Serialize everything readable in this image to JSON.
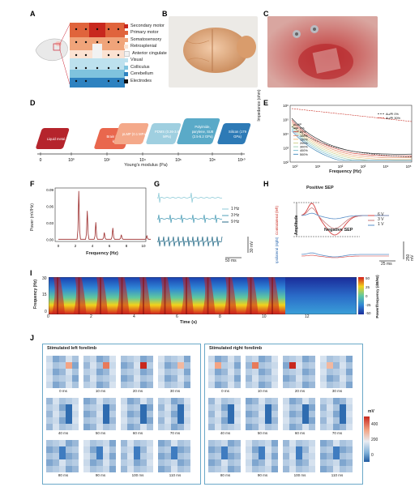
{
  "labels": {
    "A": "A",
    "B": "B",
    "C": "C",
    "D": "D",
    "E": "E",
    "F": "F",
    "G": "G",
    "H": "H",
    "I": "I",
    "J": "J"
  },
  "panelA": {
    "legend": [
      {
        "name": "Secondary motor",
        "color": "#c8281e"
      },
      {
        "name": "Primary motor",
        "color": "#e0643c"
      },
      {
        "name": "Somatosensory",
        "color": "#f0a47a"
      },
      {
        "name": "Retrosplenial",
        "color": "#fbe2d2"
      },
      {
        "name": "Anterior cingulate",
        "color": "#f2f2f2"
      },
      {
        "name": "Visual",
        "color": "#bde1ee"
      },
      {
        "name": "Colliculus",
        "color": "#7fc3de"
      },
      {
        "name": "Cerebellum",
        "color": "#2e82c0"
      },
      {
        "name": "Electrodes",
        "color": "#111111"
      }
    ]
  },
  "panelD": {
    "xlabel": "Young's modulus (Pa)",
    "ticks": [
      "0",
      "10⁰",
      "10²",
      "10⁴",
      "10⁶",
      "10⁸",
      "10¹⁰"
    ],
    "boxes": [
      {
        "text": "Liquid metal",
        "color": "#b5242c"
      },
      {
        "text": "Brain (1-560 kPa)",
        "color": "#e9674d"
      },
      {
        "text": "pLMP (0.1 MPa)",
        "color": "#f4a98a"
      },
      {
        "text": "PDMS (0.36-3.6 MPa)",
        "color": "#9fcfe0"
      },
      {
        "text": "Polyimide, parylene, SU8 (2.5-5.2 GPa)",
        "color": "#5aaac8"
      },
      {
        "text": "Silicon (179 GPa)",
        "color": "#2d7ab6"
      }
    ]
  },
  "panelE": {
    "ylabel": "Impedance (ohm)",
    "xlabel": "Frequency (Hz)",
    "yticks": [
      "10⁶",
      "10⁵",
      "10⁴",
      "10³",
      "10²"
    ],
    "xticks": [
      "10⁰",
      "10¹",
      "10²",
      "10³",
      "10⁴",
      "10⁵"
    ],
    "legend_left": [
      "μLMP",
      "0%",
      "50%",
      "100%",
      "150%",
      "200%",
      "300%",
      "400%",
      "500%"
    ],
    "legend_right": [
      "Au/PI 0%",
      "Au/PI 30%"
    ]
  },
  "panelF": {
    "ylabel": "Power (mV/Hz)",
    "xlabel": "Frequency (Hz)",
    "yticks": [
      "0.09",
      "0.06",
      "0.03",
      "0.00"
    ],
    "xticks": [
      "0",
      "2",
      "4",
      "6",
      "8",
      "10"
    ]
  },
  "panelG": {
    "legend": [
      "1 Hz",
      "3 Hz",
      "9 Hz"
    ],
    "scale_v": "30 mV",
    "scale_t": "50 ms"
  },
  "panelH": {
    "title_pos": "Positive SEP",
    "title_neg": "Negative SEP",
    "amplitude": "Amplitude",
    "contra": "Contralateral (left)",
    "ipsi": "Ipsilateral (right)",
    "legend": [
      "6 V",
      "3 V",
      "1 V"
    ],
    "scale_v": "250 mV",
    "scale_t": "25 ms"
  },
  "panelI": {
    "ylabel": "Frequency (Hz)",
    "xlabel": "Time (s)",
    "yticks": [
      "30",
      "15",
      "0"
    ],
    "xticks": [
      "0",
      "2",
      "4",
      "6",
      "8",
      "10",
      "12"
    ],
    "cbar_label": "Power/frequency (dB/Hz)",
    "cbar_ticks": [
      "50",
      "25",
      "0",
      "-25",
      "-50"
    ]
  },
  "panelJ": {
    "left_title": "Stimulated left forelimb",
    "right_title": "Stimulated right forelimb",
    "times": [
      "0 ms",
      "10 ms",
      "20 ms",
      "30 ms",
      "40 ms",
      "50 ms",
      "60 ms",
      "70 ms",
      "80 ms",
      "90 ms",
      "100 ms",
      "110 ms"
    ],
    "cbar_unit": "mV",
    "cbar_ticks": [
      "400",
      "200",
      "0"
    ]
  }
}
